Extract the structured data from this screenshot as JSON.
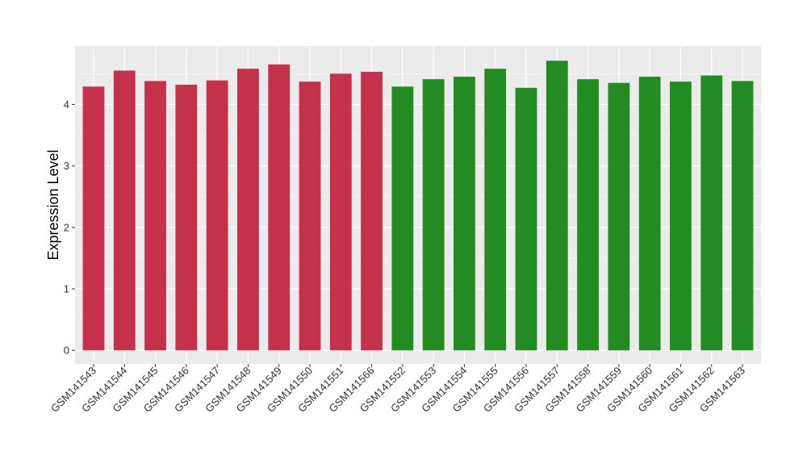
{
  "chart_data": {
    "type": "bar",
    "title": "",
    "xlabel": "",
    "ylabel": "Expression Level",
    "ylim": [
      -0.22,
      4.95
    ],
    "yticks": [
      0,
      1,
      2,
      3,
      4
    ],
    "grid": true,
    "legend": "none",
    "colors": {
      "panel_background": "#ebebeb",
      "grid_major": "#ffffff",
      "group_1": "#c5314a",
      "group_2": "#228b22"
    },
    "categories": [
      "GSM141543",
      "GSM141544",
      "GSM141545",
      "GSM141546",
      "GSM141547",
      "GSM141548",
      "GSM141549",
      "GSM141550",
      "GSM141551",
      "GSM141566",
      "GSM141552",
      "GSM141553",
      "GSM141554",
      "GSM141555",
      "GSM141556",
      "GSM141557",
      "GSM141558",
      "GSM141559",
      "GSM141560",
      "GSM141561",
      "GSM141562",
      "GSM141563"
    ],
    "values": [
      4.29,
      4.55,
      4.38,
      4.32,
      4.39,
      4.58,
      4.65,
      4.37,
      4.5,
      4.53,
      4.29,
      4.41,
      4.45,
      4.58,
      4.27,
      4.71,
      4.41,
      4.35,
      4.45,
      4.37,
      4.47,
      4.38
    ],
    "bar_groups": [
      1,
      1,
      1,
      1,
      1,
      1,
      1,
      1,
      1,
      1,
      2,
      2,
      2,
      2,
      2,
      2,
      2,
      2,
      2,
      2,
      2,
      2
    ]
  }
}
